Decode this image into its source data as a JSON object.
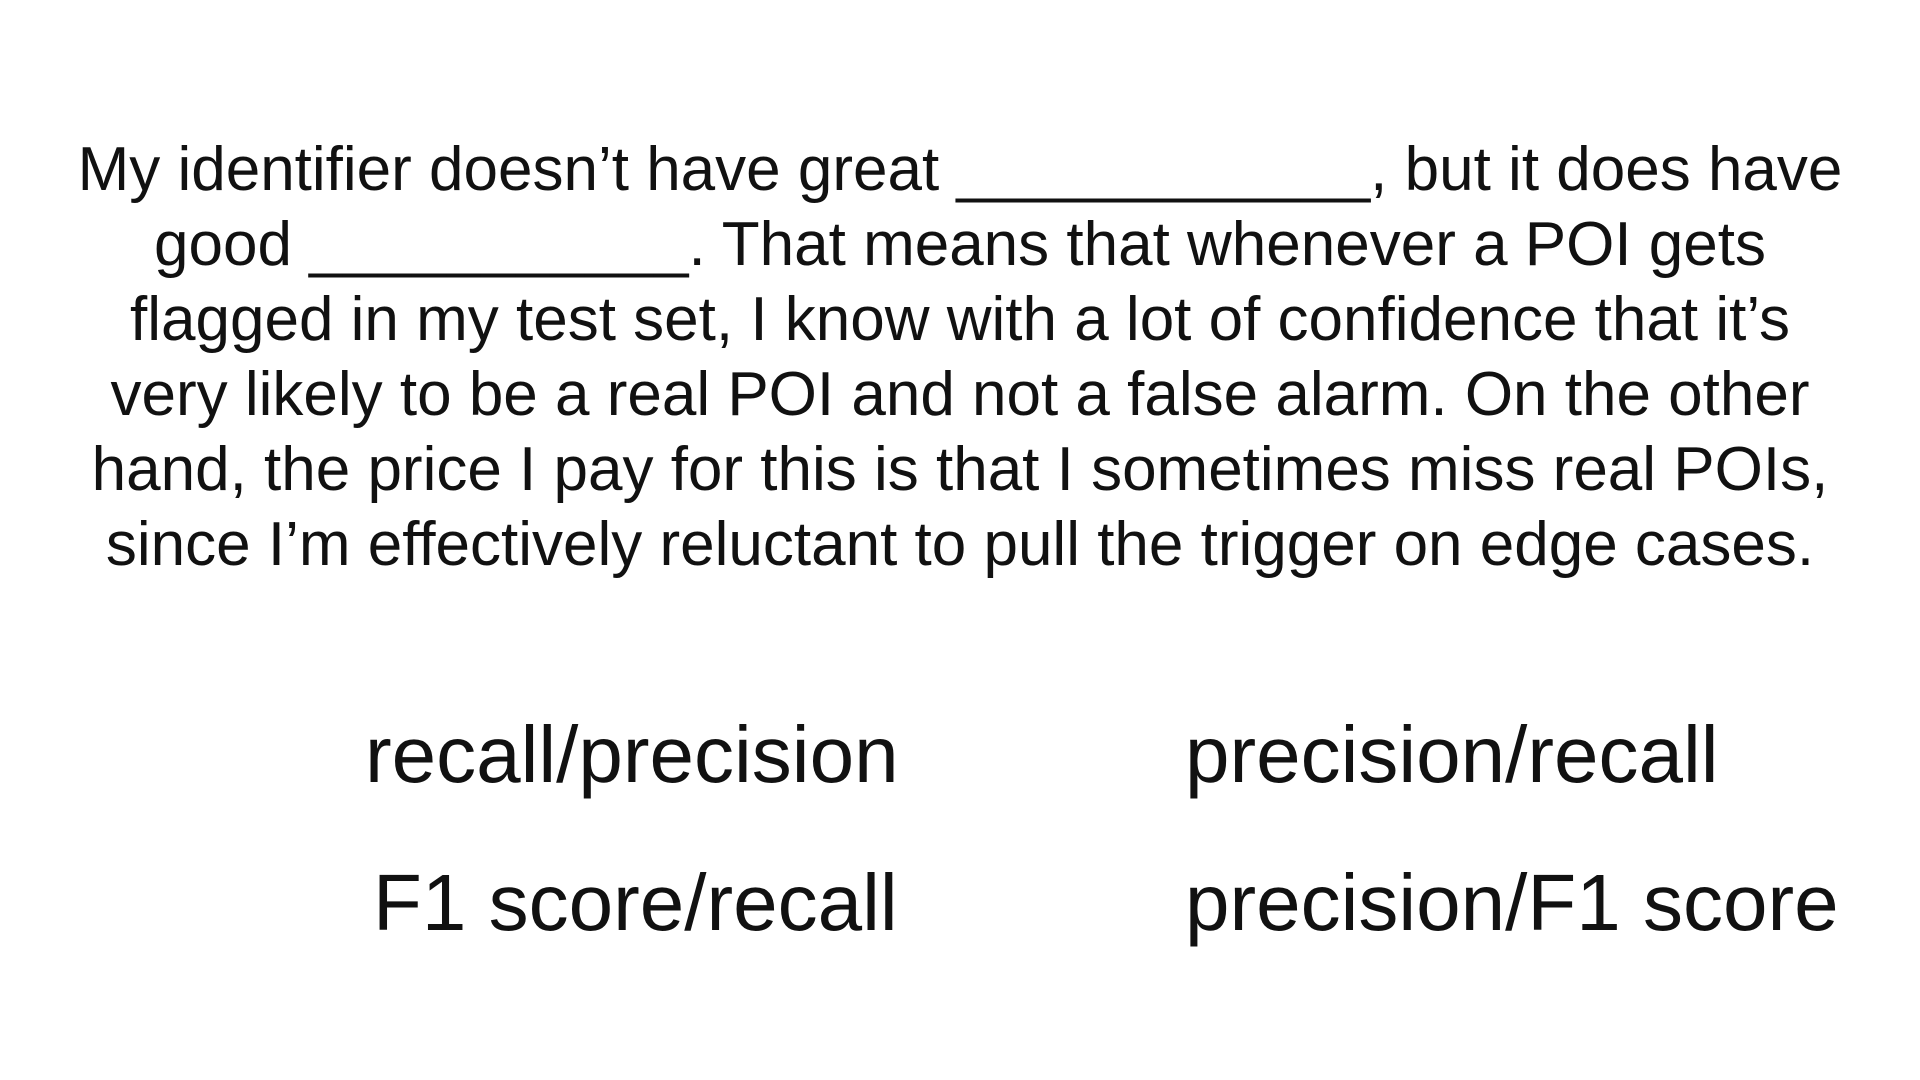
{
  "question": {
    "lines": [
      "My identifier doesn’t have great ____________, but it does have",
      "good ___________.  That means that whenever a POI gets",
      "flagged in my test set, I know with a lot of confidence that it’s",
      "very likely to be a real POI and not a false alarm.  On the other",
      "hand, the price I pay for this is that I sometimes miss real POIs,",
      "since I’m effectively reluctant to pull the trigger on edge cases."
    ]
  },
  "options": [
    {
      "label": "recall/precision"
    },
    {
      "label": "precision/recall"
    },
    {
      "label": "F1 score/recall"
    },
    {
      "label": "precision/F1 score"
    }
  ]
}
